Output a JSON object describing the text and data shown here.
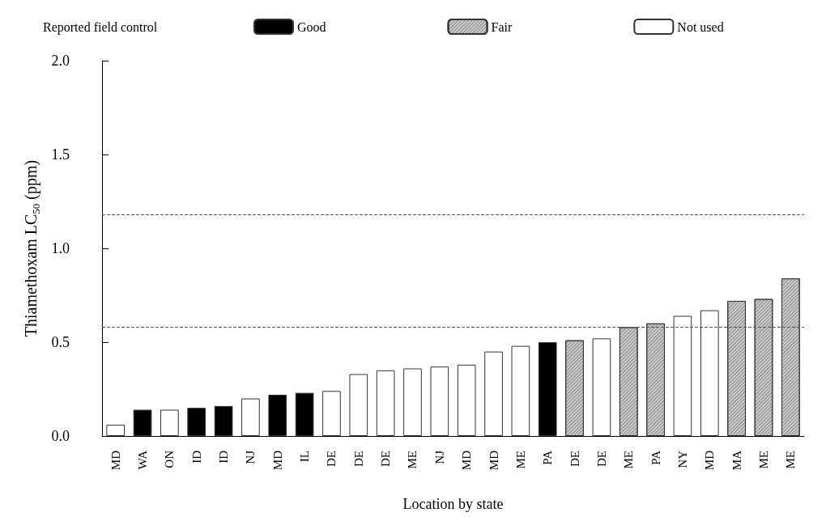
{
  "chart_data": {
    "type": "bar",
    "legend_title": "Reported field control",
    "xlabel": "Location by state",
    "ylabel": "Thiamethoxam LC$_{50}$ (ppm)",
    "categories": [
      "MD",
      "WA",
      "ON",
      "ID",
      "ID",
      "NJ",
      "MD",
      "IL",
      "DE",
      "DE",
      "DE",
      "ME",
      "NJ",
      "MD",
      "MD",
      "ME",
      "PA",
      "DE",
      "DE",
      "ME",
      "PA",
      "NY",
      "MD",
      "MA",
      "ME",
      "ME"
    ],
    "series": [
      {
        "name": "Good",
        "color": "#000000",
        "values": [
          null,
          0.14,
          null,
          0.15,
          0.16,
          null,
          0.22,
          0.23,
          null,
          null,
          null,
          null,
          null,
          null,
          null,
          null,
          0.5,
          null,
          null,
          null,
          null,
          null,
          null,
          null,
          null,
          null
        ]
      },
      {
        "name": "Fair",
        "color": "#cccccc",
        "values": [
          null,
          null,
          null,
          null,
          null,
          null,
          null,
          null,
          null,
          null,
          null,
          null,
          null,
          null,
          null,
          null,
          null,
          0.51,
          null,
          0.58,
          0.6,
          null,
          null,
          0.72,
          0.73,
          0.84
        ]
      },
      {
        "name": "Not used",
        "color": "#ffffff",
        "values": [
          0.06,
          null,
          0.14,
          null,
          null,
          0.2,
          null,
          null,
          0.24,
          0.33,
          0.35,
          0.36,
          0.37,
          0.38,
          0.45,
          0.48,
          null,
          null,
          0.52,
          null,
          null,
          0.64,
          0.67,
          null,
          null,
          null
        ]
      }
    ],
    "ylim": [
      0,
      2
    ],
    "yticks": [
      {
        "value": 0,
        "label": "0.0"
      },
      {
        "value": 0.5,
        "label": "0.5"
      },
      {
        "value": 1,
        "label": "1.0"
      },
      {
        "value": 1.5,
        "label": "1.5"
      },
      {
        "value": 2,
        "label": "2.0"
      }
    ],
    "ref_lines": [
      {
        "axis": "y",
        "value": 1.18,
        "line_style": "dashed",
        "color": "#555555"
      },
      {
        "axis": "y",
        "value": 0.58,
        "line_style": "dashed",
        "color": "#555555"
      }
    ],
    "legend": "top",
    "grid": false
  }
}
